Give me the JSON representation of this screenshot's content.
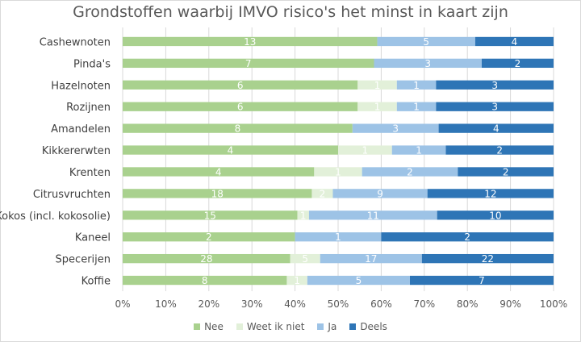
{
  "chart_data": {
    "type": "bar",
    "orientation": "horizontal",
    "stacked": "percent",
    "title": "Grondstoffen waarbij IMVO risico's het minst in kaart zijn",
    "categories": [
      "Cashewnoten",
      "Pinda's",
      "Hazelnoten",
      "Rozijnen",
      "Amandelen",
      "Kikkererwten",
      "Krenten",
      "Citrusvruchten",
      "Kokos (incl. kokosolie)",
      "Kaneel",
      "Specerijen",
      "Koffie"
    ],
    "series": [
      {
        "name": "Nee",
        "color": "#a9d18e",
        "values": [
          13,
          7,
          6,
          6,
          8,
          4,
          4,
          18,
          15,
          2,
          28,
          8
        ]
      },
      {
        "name": "Weet ik niet",
        "color": "#e2f0d9",
        "values": [
          0,
          0,
          1,
          1,
          0,
          1,
          1,
          2,
          1,
          0,
          5,
          1
        ]
      },
      {
        "name": "Ja",
        "color": "#9dc3e6",
        "values": [
          5,
          3,
          1,
          1,
          3,
          1,
          2,
          9,
          11,
          1,
          17,
          5
        ]
      },
      {
        "name": "Deels",
        "color": "#2e75b6",
        "values": [
          4,
          2,
          3,
          3,
          4,
          2,
          2,
          12,
          10,
          2,
          22,
          7
        ]
      }
    ],
    "xticks": [
      "0%",
      "10%",
      "20%",
      "30%",
      "40%",
      "50%",
      "60%",
      "70%",
      "80%",
      "90%",
      "100%"
    ],
    "xlim": [
      0,
      100
    ],
    "grid": true,
    "legend_position": "bottom"
  }
}
